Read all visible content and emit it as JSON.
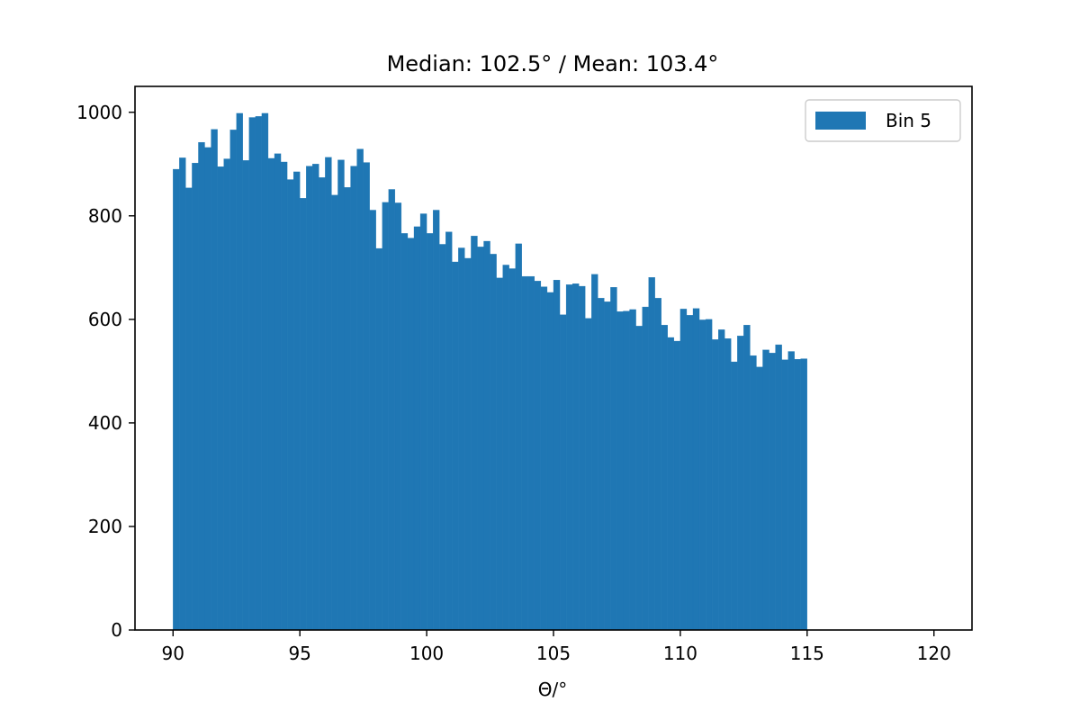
{
  "chart_data": {
    "type": "bar",
    "title": "Median: 102.5° / Mean: 103.4°",
    "xlabel": "Θ/°",
    "ylabel": "",
    "xlim": [
      88.5,
      121.5
    ],
    "ylim": [
      0,
      1050
    ],
    "x_ticks": [
      90,
      95,
      100,
      105,
      110,
      115,
      120
    ],
    "y_ticks": [
      0,
      200,
      400,
      600,
      800,
      1000
    ],
    "grid": false,
    "legend_position": "top-right",
    "bin_width": 0.25,
    "bin_start": 90,
    "bar_color": "#1f77b4",
    "series": [
      {
        "name": "Bin 5",
        "values": [
          890,
          912,
          854,
          902,
          942,
          932,
          967,
          895,
          910,
          966,
          998,
          907,
          990,
          992,
          998,
          911,
          920,
          904,
          870,
          885,
          834,
          896,
          900,
          874,
          913,
          840,
          908,
          855,
          896,
          929,
          903,
          811,
          737,
          826,
          851,
          825,
          766,
          757,
          779,
          804,
          766,
          811,
          745,
          769,
          711,
          738,
          718,
          761,
          740,
          751,
          726,
          680,
          705,
          698,
          746,
          683,
          683,
          674,
          663,
          652,
          676,
          609,
          667,
          669,
          664,
          602,
          687,
          641,
          634,
          662,
          615,
          616,
          619,
          587,
          624,
          681,
          641,
          589,
          565,
          558,
          620,
          608,
          621,
          599,
          600,
          561,
          580,
          563,
          518,
          568,
          589,
          530,
          508,
          541,
          535,
          551,
          522,
          538,
          523,
          524
        ]
      }
    ]
  }
}
